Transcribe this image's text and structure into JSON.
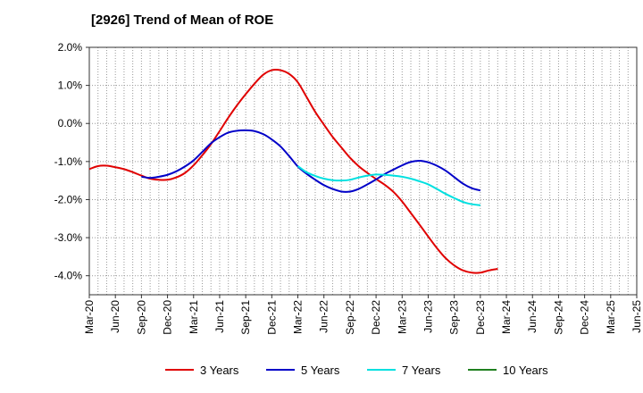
{
  "chart_data": {
    "type": "line",
    "title": "[2926]  Trend of Mean of ROE",
    "xlabel": "",
    "ylabel": "",
    "ylim": [
      -4.5,
      2.0
    ],
    "yticks": [
      2.0,
      1.0,
      0.0,
      -1.0,
      -2.0,
      -3.0,
      -4.0
    ],
    "ytick_labels": [
      "2.0%",
      "1.0%",
      "0.0%",
      "-1.0%",
      "-2.0%",
      "-3.0%",
      "-4.0%"
    ],
    "categories": [
      "Mar-20",
      "Jun-20",
      "Sep-20",
      "Dec-20",
      "Mar-21",
      "Jun-21",
      "Sep-21",
      "Dec-21",
      "Mar-22",
      "Jun-22",
      "Sep-22",
      "Dec-22",
      "Mar-23",
      "Jun-23",
      "Sep-23",
      "Dec-23",
      "Mar-24",
      "Jun-24",
      "Sep-24",
      "Dec-24",
      "Mar-25",
      "Jun-25"
    ],
    "grid": true,
    "legend_position": "bottom",
    "series": [
      {
        "name": "3 Years",
        "color": "#e00000",
        "points": [
          [
            0,
            -1.2
          ],
          [
            0.33,
            -1.12
          ],
          [
            0.67,
            -1.11
          ],
          [
            1,
            -1.15
          ],
          [
            1.33,
            -1.2
          ],
          [
            1.67,
            -1.28
          ],
          [
            2,
            -1.37
          ],
          [
            2.33,
            -1.45
          ],
          [
            2.67,
            -1.48
          ],
          [
            3,
            -1.48
          ],
          [
            3.33,
            -1.42
          ],
          [
            3.67,
            -1.3
          ],
          [
            4,
            -1.1
          ],
          [
            4.33,
            -0.84
          ],
          [
            4.67,
            -0.54
          ],
          [
            5,
            -0.2
          ],
          [
            5.33,
            0.15
          ],
          [
            5.67,
            0.48
          ],
          [
            6,
            0.77
          ],
          [
            6.33,
            1.04
          ],
          [
            6.67,
            1.28
          ],
          [
            7,
            1.4
          ],
          [
            7.33,
            1.4
          ],
          [
            7.67,
            1.3
          ],
          [
            8,
            1.08
          ],
          [
            8.33,
            0.7
          ],
          [
            8.67,
            0.3
          ],
          [
            9,
            -0.03
          ],
          [
            9.33,
            -0.35
          ],
          [
            9.67,
            -0.63
          ],
          [
            10,
            -0.9
          ],
          [
            10.33,
            -1.12
          ],
          [
            10.67,
            -1.3
          ],
          [
            11,
            -1.46
          ],
          [
            11.33,
            -1.61
          ],
          [
            11.67,
            -1.8
          ],
          [
            12,
            -2.05
          ],
          [
            12.33,
            -2.35
          ],
          [
            12.67,
            -2.66
          ],
          [
            13,
            -2.97
          ],
          [
            13.33,
            -3.27
          ],
          [
            13.67,
            -3.54
          ],
          [
            14,
            -3.73
          ],
          [
            14.33,
            -3.86
          ],
          [
            14.67,
            -3.92
          ],
          [
            15,
            -3.92
          ],
          [
            15.33,
            -3.86
          ],
          [
            15.67,
            -3.82
          ]
        ]
      },
      {
        "name": "5 Years",
        "color": "#0000c8",
        "points": [
          [
            2,
            -1.4
          ],
          [
            2.33,
            -1.43
          ],
          [
            2.67,
            -1.4
          ],
          [
            3,
            -1.35
          ],
          [
            3.33,
            -1.26
          ],
          [
            3.67,
            -1.13
          ],
          [
            4,
            -0.97
          ],
          [
            4.33,
            -0.75
          ],
          [
            4.67,
            -0.52
          ],
          [
            5,
            -0.36
          ],
          [
            5.33,
            -0.24
          ],
          [
            5.67,
            -0.19
          ],
          [
            6,
            -0.18
          ],
          [
            6.33,
            -0.2
          ],
          [
            6.67,
            -0.28
          ],
          [
            7,
            -0.42
          ],
          [
            7.33,
            -0.6
          ],
          [
            7.67,
            -0.86
          ],
          [
            8,
            -1.13
          ],
          [
            8.33,
            -1.32
          ],
          [
            8.67,
            -1.48
          ],
          [
            9,
            -1.62
          ],
          [
            9.33,
            -1.72
          ],
          [
            9.67,
            -1.79
          ],
          [
            10,
            -1.79
          ],
          [
            10.33,
            -1.72
          ],
          [
            10.67,
            -1.6
          ],
          [
            11,
            -1.47
          ],
          [
            11.33,
            -1.33
          ],
          [
            11.67,
            -1.21
          ],
          [
            12,
            -1.1
          ],
          [
            12.33,
            -1.01
          ],
          [
            12.67,
            -0.98
          ],
          [
            13,
            -1.02
          ],
          [
            13.33,
            -1.11
          ],
          [
            13.67,
            -1.24
          ],
          [
            14,
            -1.41
          ],
          [
            14.33,
            -1.58
          ],
          [
            14.67,
            -1.7
          ],
          [
            15,
            -1.76
          ]
        ]
      },
      {
        "name": "7 Years",
        "color": "#00e0e0",
        "points": [
          [
            8,
            -1.12
          ],
          [
            8.33,
            -1.28
          ],
          [
            8.67,
            -1.38
          ],
          [
            9,
            -1.45
          ],
          [
            9.33,
            -1.49
          ],
          [
            9.67,
            -1.5
          ],
          [
            10,
            -1.48
          ],
          [
            10.33,
            -1.42
          ],
          [
            10.67,
            -1.37
          ],
          [
            11,
            -1.34
          ],
          [
            11.33,
            -1.35
          ],
          [
            11.67,
            -1.37
          ],
          [
            12,
            -1.4
          ],
          [
            12.33,
            -1.45
          ],
          [
            12.67,
            -1.52
          ],
          [
            13,
            -1.6
          ],
          [
            13.33,
            -1.72
          ],
          [
            13.67,
            -1.85
          ],
          [
            14,
            -1.96
          ],
          [
            14.33,
            -2.06
          ],
          [
            14.67,
            -2.12
          ],
          [
            15,
            -2.15
          ]
        ]
      },
      {
        "name": "10 Years",
        "color": "#208020",
        "points": []
      }
    ]
  }
}
